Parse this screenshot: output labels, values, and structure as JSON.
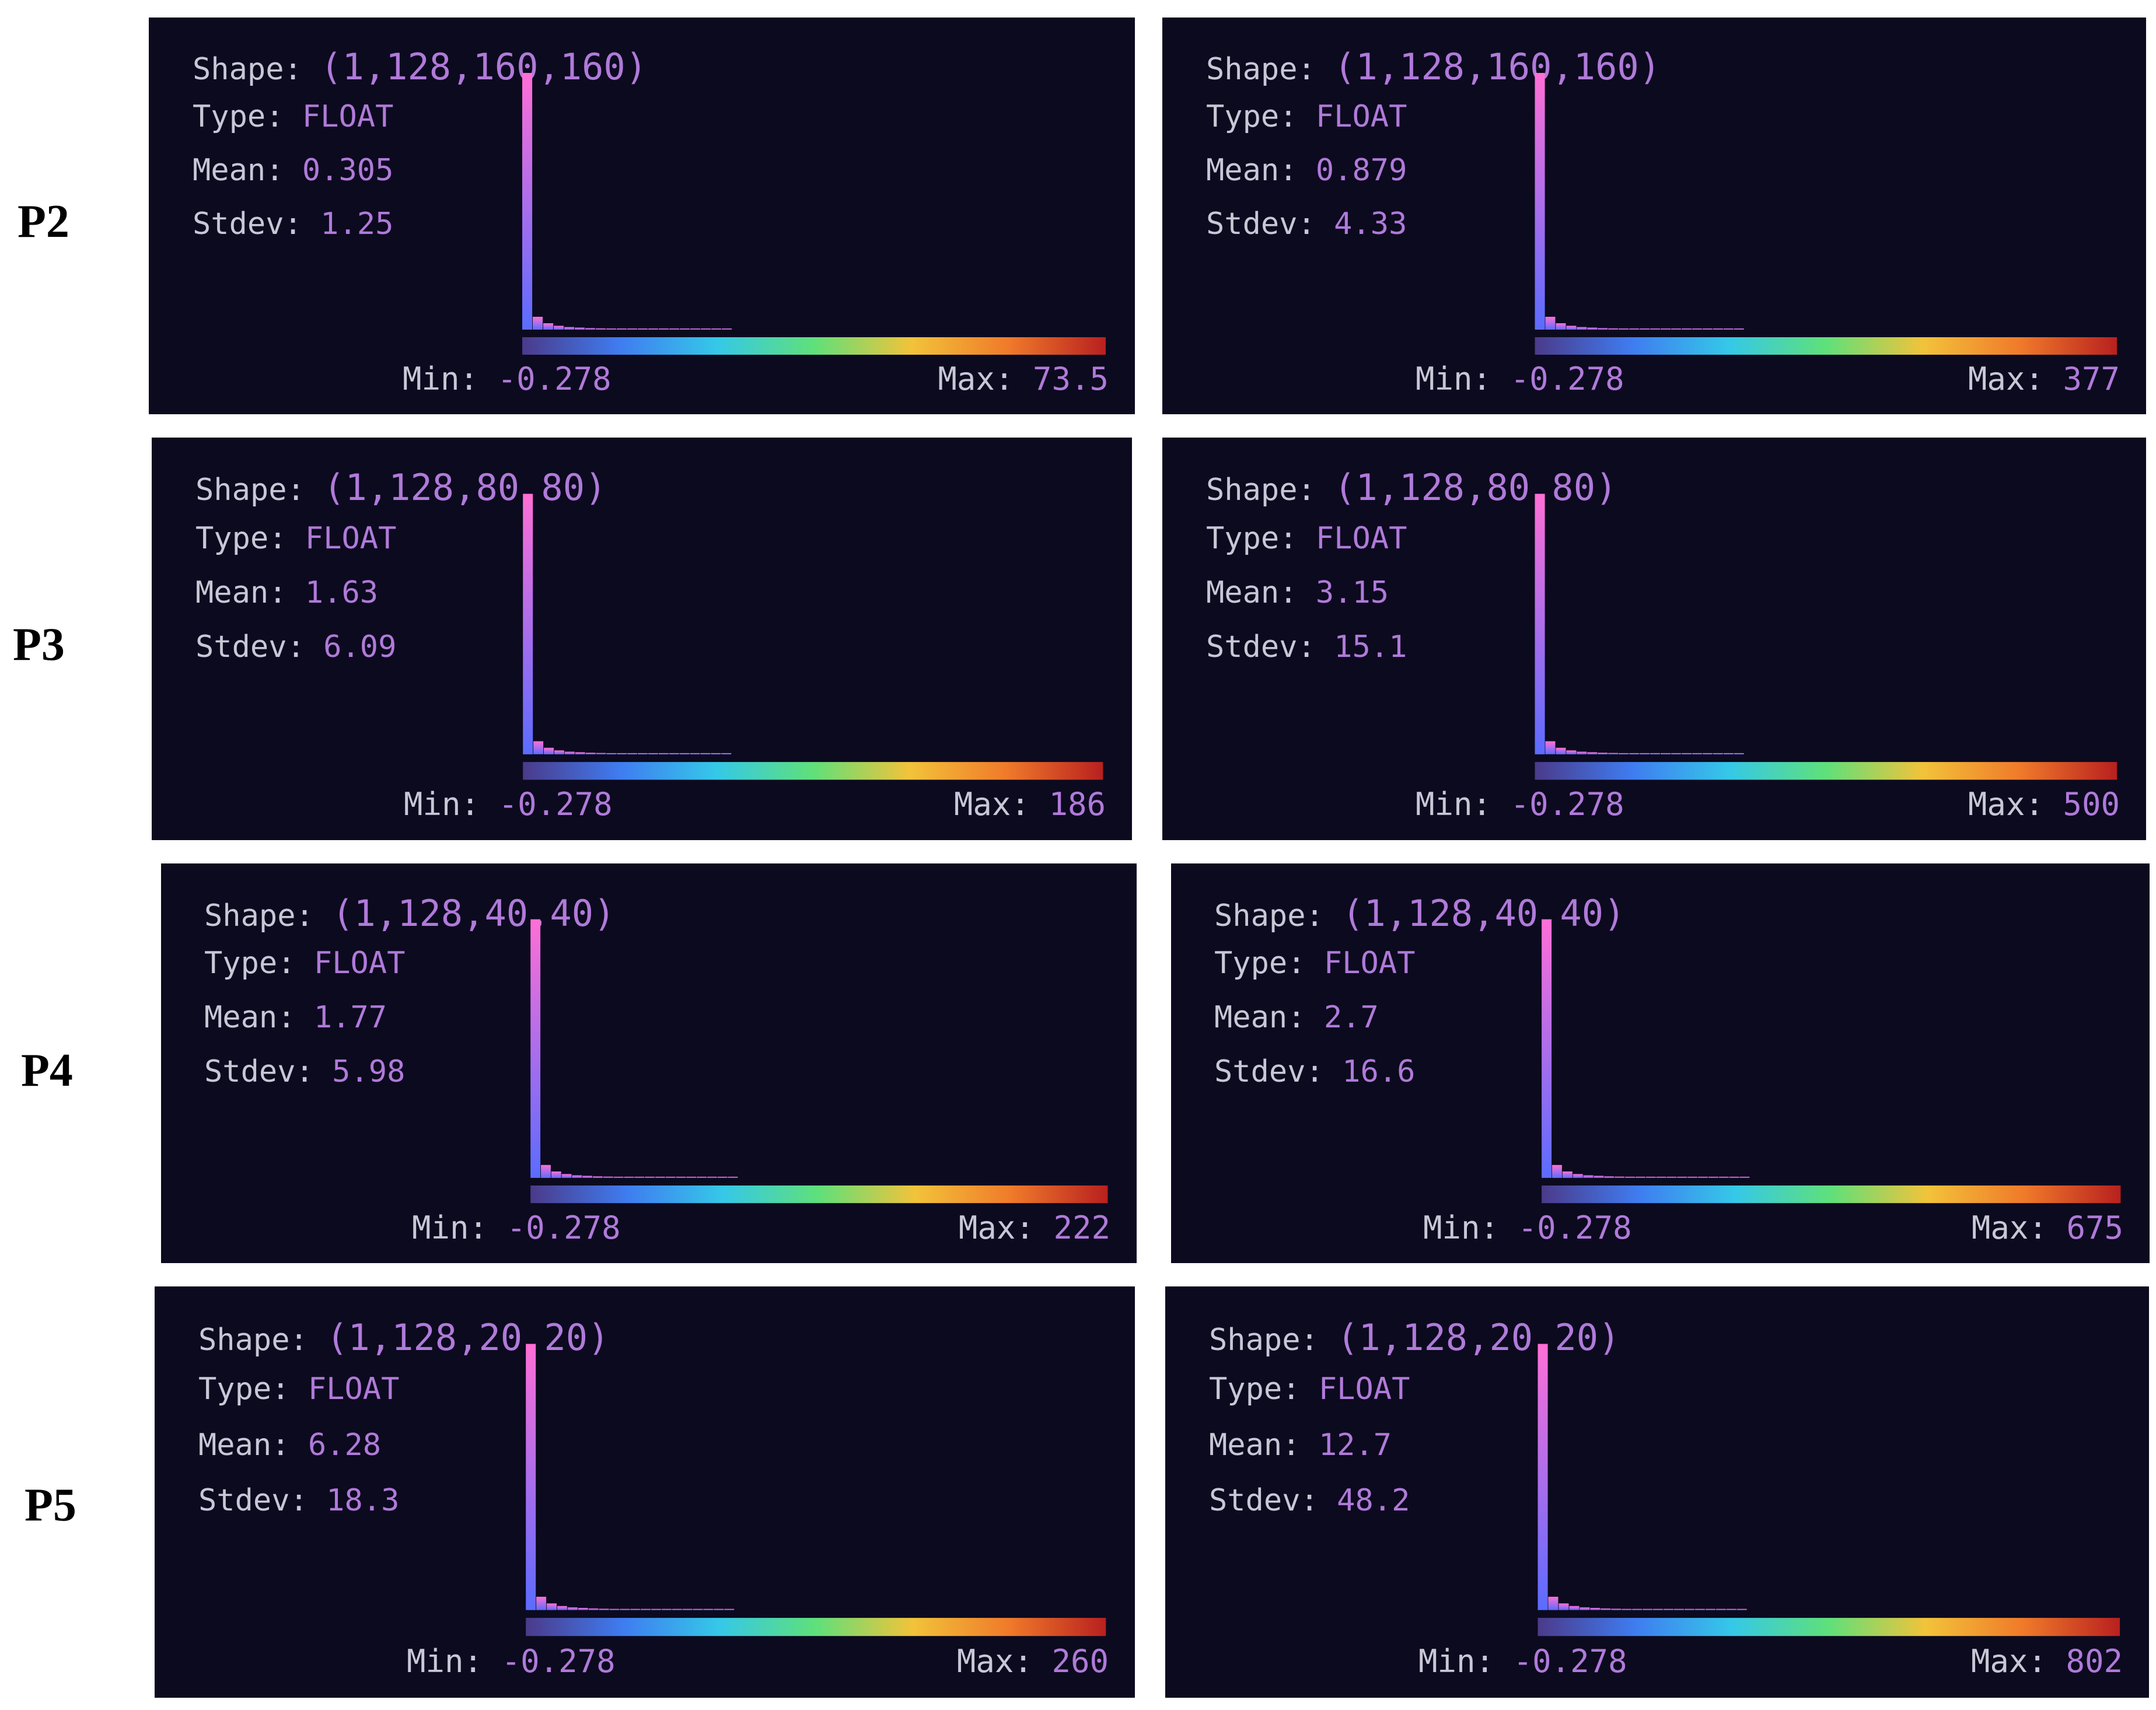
{
  "labels": {
    "shape": "Shape:",
    "type": "Type:",
    "mean": "Mean:",
    "stdev": "Stdev:",
    "min": "Min:",
    "max": "Max:"
  },
  "colors": {
    "panel_bg": "#0c0a1f",
    "key_text": "#c9c6d6",
    "value_text": "#b07ad9",
    "bar_top": "#ff6fd6",
    "bar_bottom": "#5b6cff",
    "colorbar": [
      "#4b3a8a",
      "#3f7cf0",
      "#35c8e8",
      "#5fe07a",
      "#f2c33a",
      "#f07a2a",
      "#b8201f"
    ]
  },
  "rows": [
    {
      "label": "P2",
      "panels": [
        {
          "shape": "(1,128,160,160)",
          "type": "FLOAT",
          "mean": "0.305",
          "stdev": "1.25",
          "min": "-0.278",
          "max": "73.5"
        },
        {
          "shape": "(1,128,160,160)",
          "type": "FLOAT",
          "mean": "0.879",
          "stdev": "4.33",
          "min": "-0.278",
          "max": "377"
        }
      ]
    },
    {
      "label": "P3",
      "panels": [
        {
          "shape": "(1,128,80,80)",
          "type": "FLOAT",
          "mean": "1.63",
          "stdev": "6.09",
          "min": "-0.278",
          "max": "186"
        },
        {
          "shape": "(1,128,80,80)",
          "type": "FLOAT",
          "mean": "3.15",
          "stdev": "15.1",
          "min": "-0.278",
          "max": "500"
        }
      ]
    },
    {
      "label": "P4",
      "panels": [
        {
          "shape": "(1,128,40,40)",
          "type": "FLOAT",
          "mean": "1.77",
          "stdev": "5.98",
          "min": "-0.278",
          "max": "222"
        },
        {
          "shape": "(1,128,40,40)",
          "type": "FLOAT",
          "mean": "2.7",
          "stdev": "16.6",
          "min": "-0.278",
          "max": "675"
        }
      ]
    },
    {
      "label": "P5",
      "panels": [
        {
          "shape": "(1,128,20,20)",
          "type": "FLOAT",
          "mean": "6.28",
          "stdev": "18.3",
          "min": "-0.278",
          "max": "260"
        },
        {
          "shape": "(1,128,20,20)",
          "type": "FLOAT",
          "mean": "12.7",
          "stdev": "48.2",
          "min": "-0.278",
          "max": "802"
        }
      ]
    }
  ],
  "chart_data": {
    "type": "bar",
    "histogram_shape": [
      1.0,
      0.05,
      0.025,
      0.015,
      0.01,
      0.008,
      0.006,
      0.005,
      0.004,
      0.003,
      0.0025,
      0.002,
      0.0015,
      0.0012,
      0.001,
      0.0008,
      0.0006,
      0.0005,
      0.0004,
      0.0003
    ]
  }
}
